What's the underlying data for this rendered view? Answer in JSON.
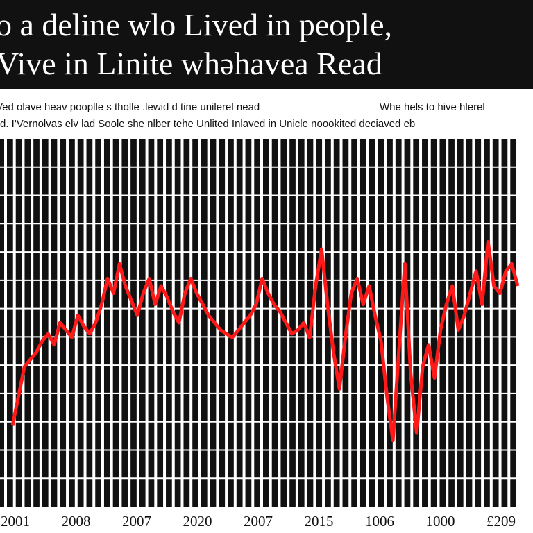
{
  "header": {
    "title_line1": "o a deline wlo Lived  in people,",
    "title_line2": "Vive  in Linite  whəhavea Read"
  },
  "subtitles": {
    "left_line1": "Ved olave heav pooplle s tholle .lewid d tine unilerel nead",
    "left_line2": "Bd. I'Vernolvas elv lad Soole she nlber tehe Unlited Inlaved in Unicle noookited deciaved eb",
    "right_line1": "Whe hels to hive hlerel",
    "right_line2": ""
  },
  "colors": {
    "title_band": "#111111",
    "plot_background": "#111111",
    "gridlines": "#ffffff",
    "series": "#ff1a1a"
  },
  "chart_data": {
    "type": "line",
    "grid": true,
    "x_tick_labels": [
      "2001",
      "2008",
      "2007",
      "2020",
      "2007",
      "2015",
      "1006",
      "1000",
      "£209"
    ],
    "ylim": [
      0,
      1
    ],
    "series": [
      {
        "values": [
          0.22,
          0.3,
          0.38,
          0.4,
          0.42,
          0.45,
          0.47,
          0.44,
          0.5,
          0.48,
          0.46,
          0.52,
          0.49,
          0.47,
          0.5,
          0.55,
          0.62,
          0.58,
          0.66,
          0.6,
          0.56,
          0.52,
          0.58,
          0.62,
          0.55,
          0.6,
          0.57,
          0.53,
          0.5,
          0.58,
          0.62,
          0.58,
          0.55,
          0.52,
          0.5,
          0.48,
          0.47,
          0.46,
          0.48,
          0.5,
          0.52,
          0.55,
          0.62,
          0.58,
          0.55,
          0.53,
          0.5,
          0.47,
          0.48,
          0.5,
          0.46,
          0.6,
          0.7,
          0.55,
          0.42,
          0.32,
          0.46,
          0.58,
          0.62,
          0.55,
          0.6,
          0.52,
          0.45,
          0.3,
          0.18,
          0.42,
          0.66,
          0.36,
          0.2,
          0.38,
          0.44,
          0.35,
          0.48,
          0.55,
          0.6,
          0.48,
          0.52,
          0.58,
          0.64,
          0.55,
          0.72,
          0.6,
          0.58,
          0.64,
          0.66,
          0.6
        ]
      }
    ]
  }
}
